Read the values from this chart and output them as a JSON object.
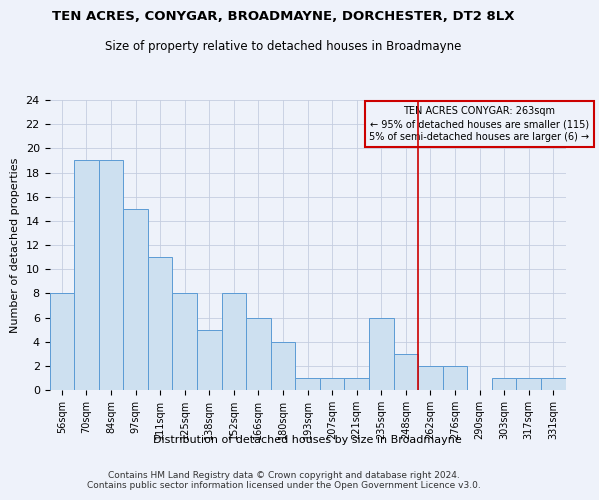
{
  "title": "TEN ACRES, CONYGAR, BROADMAYNE, DORCHESTER, DT2 8LX",
  "subtitle": "Size of property relative to detached houses in Broadmayne",
  "xlabel": "Distribution of detached houses by size in Broadmayne",
  "ylabel": "Number of detached properties",
  "bins": [
    "56sqm",
    "70sqm",
    "84sqm",
    "97sqm",
    "111sqm",
    "125sqm",
    "138sqm",
    "152sqm",
    "166sqm",
    "180sqm",
    "193sqm",
    "207sqm",
    "221sqm",
    "235sqm",
    "248sqm",
    "262sqm",
    "276sqm",
    "290sqm",
    "303sqm",
    "317sqm",
    "331sqm"
  ],
  "values": [
    8,
    19,
    19,
    15,
    11,
    8,
    5,
    8,
    6,
    4,
    1,
    1,
    1,
    6,
    3,
    2,
    2,
    0,
    1,
    1,
    1
  ],
  "bar_color": "#cde0f0",
  "bar_edge_color": "#5b9bd5",
  "vline_x_index": 14.5,
  "vline_color": "#cc0000",
  "annotation_box_text": "TEN ACRES CONYGAR: 263sqm\n← 95% of detached houses are smaller (115)\n5% of semi-detached houses are larger (6) →",
  "annotation_box_color": "#cc0000",
  "footer": "Contains HM Land Registry data © Crown copyright and database right 2024.\nContains public sector information licensed under the Open Government Licence v3.0.",
  "ylim": [
    0,
    24
  ],
  "yticks": [
    0,
    2,
    4,
    6,
    8,
    10,
    12,
    14,
    16,
    18,
    20,
    22,
    24
  ],
  "background_color": "#eef2fa",
  "grid_color": "#c5cde0",
  "title_fontsize": 9.5,
  "subtitle_fontsize": 8.5
}
